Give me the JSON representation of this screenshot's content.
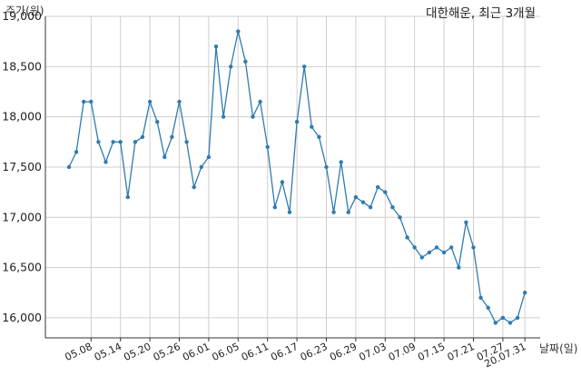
{
  "chart_data": {
    "type": "line",
    "title": "대한해운, 최근 3개월",
    "ylabel": "주가(원)",
    "xlabel": "날짜(일)",
    "ylim": [
      15800,
      19000
    ],
    "yticks": [
      16000,
      16500,
      17000,
      17500,
      18000,
      18500,
      19000
    ],
    "ytick_labels": [
      "16,000",
      "16,500",
      "17,000",
      "17,500",
      "18,000",
      "18,500",
      "19,000"
    ],
    "xtick_labels": [
      "05.08",
      "05.14",
      "05.20",
      "05.26",
      "06.01",
      "06.05",
      "06.11",
      "06.17",
      "06.23",
      "06.29",
      "07.03",
      "07.09",
      "07.15",
      "07.21",
      "07.27",
      "20.07.31"
    ],
    "xtick_positions": [
      3,
      7,
      11,
      15,
      19,
      23,
      27,
      31,
      35,
      39,
      43,
      47,
      51,
      55,
      59,
      62
    ],
    "grid": true,
    "line_color": "#2e7bb0",
    "values": [
      17500,
      17650,
      18150,
      18150,
      17750,
      17550,
      17750,
      17750,
      17200,
      17750,
      17800,
      18150,
      17950,
      17600,
      17800,
      18150,
      17750,
      17300,
      17500,
      17600,
      18700,
      18000,
      18500,
      18850,
      18550,
      18000,
      18150,
      17700,
      17100,
      17350,
      17050,
      17950,
      18500,
      17900,
      17800,
      17500,
      17050,
      17550,
      17050,
      17200,
      17150,
      17100,
      17300,
      17250,
      17100,
      17000,
      16800,
      16700,
      16600,
      16650,
      16700,
      16650,
      16700,
      16500,
      16950,
      16700,
      16200,
      16100,
      15950,
      16000,
      15950,
      16000,
      16250
    ]
  }
}
